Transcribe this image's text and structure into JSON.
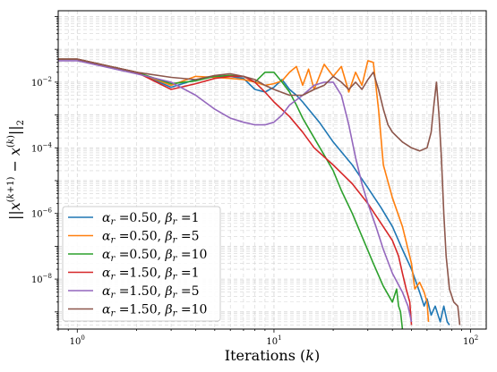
{
  "chart_data": {
    "type": "line",
    "title": "",
    "xlabel": "Iterations (k)",
    "ylabel": "||x^(k+1) − x^(k)||_2",
    "xscale": "log",
    "yscale": "log",
    "xlim": [
      0.8,
      120
    ],
    "ylim": [
      3e-10,
      1.5
    ],
    "grid": true,
    "legend_position": "lower-left",
    "x_ticks": [
      {
        "value": 1,
        "mant": "10",
        "exp": "0"
      },
      {
        "value": 10,
        "mant": "10",
        "exp": "1"
      },
      {
        "value": 100,
        "mant": "10",
        "exp": "2"
      }
    ],
    "y_ticks": [
      {
        "value": 1e-08,
        "mant": "10",
        "exp": "−8"
      },
      {
        "value": 1e-06,
        "mant": "10",
        "exp": "−6"
      },
      {
        "value": 0.0001,
        "mant": "10",
        "exp": "−4"
      },
      {
        "value": 0.01,
        "mant": "10",
        "exp": "−2"
      }
    ],
    "series": [
      {
        "alpha": "0.50",
        "beta": "1",
        "color": "#1f77b4",
        "points": [
          [
            0.8,
            0.05
          ],
          [
            1,
            0.05
          ],
          [
            2,
            0.02
          ],
          [
            3,
            0.007
          ],
          [
            4,
            0.012
          ],
          [
            5,
            0.015
          ],
          [
            6,
            0.015
          ],
          [
            7,
            0.013
          ],
          [
            8,
            0.006
          ],
          [
            9,
            0.005
          ],
          [
            10,
            0.007
          ],
          [
            11,
            0.012
          ],
          [
            12,
            0.006
          ],
          [
            13,
            0.004
          ],
          [
            14,
            0.0025
          ],
          [
            15,
            0.0015
          ],
          [
            17,
            0.0006
          ],
          [
            20,
            0.00015
          ],
          [
            25,
            3e-05
          ],
          [
            30,
            6e-06
          ],
          [
            35,
            1.5e-06
          ],
          [
            40,
            4e-07
          ],
          [
            45,
            8e-08
          ],
          [
            50,
            2e-08
          ],
          [
            55,
            4e-09
          ],
          [
            58,
            1.5e-09
          ],
          [
            60,
            2.5e-09
          ],
          [
            63,
            8e-10
          ],
          [
            66,
            1.5e-09
          ],
          [
            70,
            5e-10
          ],
          [
            73,
            1.5e-09
          ],
          [
            76,
            5e-10
          ],
          [
            78,
            4e-10
          ]
        ]
      },
      {
        "alpha": "0.50",
        "beta": "5",
        "color": "#ff7f0e",
        "points": [
          [
            0.8,
            0.05
          ],
          [
            1,
            0.05
          ],
          [
            2,
            0.02
          ],
          [
            3,
            0.008
          ],
          [
            4,
            0.015
          ],
          [
            5,
            0.014
          ],
          [
            6,
            0.013
          ],
          [
            7,
            0.012
          ],
          [
            8,
            0.01
          ],
          [
            9,
            0.008
          ],
          [
            10,
            0.009
          ],
          [
            11,
            0.011
          ],
          [
            12,
            0.02
          ],
          [
            13,
            0.03
          ],
          [
            14,
            0.008
          ],
          [
            15,
            0.025
          ],
          [
            16,
            0.006
          ],
          [
            18,
            0.035
          ],
          [
            20,
            0.015
          ],
          [
            22,
            0.03
          ],
          [
            24,
            0.005
          ],
          [
            26,
            0.02
          ],
          [
            28,
            0.008
          ],
          [
            30,
            0.045
          ],
          [
            32,
            0.04
          ],
          [
            34,
            0.0015
          ],
          [
            36,
            3e-05
          ],
          [
            40,
            3e-06
          ],
          [
            45,
            4e-07
          ],
          [
            50,
            3e-08
          ],
          [
            52,
            5e-09
          ],
          [
            55,
            8e-09
          ],
          [
            58,
            4e-09
          ],
          [
            60,
            2e-09
          ],
          [
            61,
            5e-10
          ]
        ]
      },
      {
        "alpha": "0.50",
        "beta": "10",
        "color": "#2ca02c",
        "points": [
          [
            0.8,
            0.05
          ],
          [
            1,
            0.05
          ],
          [
            2,
            0.02
          ],
          [
            3,
            0.009
          ],
          [
            4,
            0.011
          ],
          [
            5,
            0.015
          ],
          [
            6,
            0.016
          ],
          [
            7,
            0.015
          ],
          [
            8,
            0.01
          ],
          [
            9,
            0.02
          ],
          [
            10,
            0.02
          ],
          [
            11,
            0.01
          ],
          [
            12,
            0.005
          ],
          [
            13,
            0.002
          ],
          [
            14,
            0.0008
          ],
          [
            16,
            0.0002
          ],
          [
            18,
            6e-05
          ],
          [
            20,
            2e-05
          ],
          [
            22,
            5e-06
          ],
          [
            25,
            1e-06
          ],
          [
            28,
            2e-07
          ],
          [
            32,
            3e-08
          ],
          [
            36,
            6e-09
          ],
          [
            40,
            2e-09
          ],
          [
            42,
            5e-09
          ],
          [
            43,
            1.5e-09
          ],
          [
            44,
            1e-09
          ],
          [
            45,
            3e-10
          ]
        ]
      },
      {
        "alpha": "1.50",
        "beta": "1",
        "color": "#d62728",
        "points": [
          [
            0.8,
            0.05
          ],
          [
            1,
            0.05
          ],
          [
            2,
            0.02
          ],
          [
            3,
            0.006
          ],
          [
            4,
            0.009
          ],
          [
            5,
            0.013
          ],
          [
            6,
            0.015
          ],
          [
            7,
            0.015
          ],
          [
            8,
            0.01
          ],
          [
            9,
            0.005
          ],
          [
            10,
            0.0025
          ],
          [
            12,
            0.0009
          ],
          [
            14,
            0.0003
          ],
          [
            16,
            0.0001
          ],
          [
            20,
            3e-05
          ],
          [
            25,
            8e-06
          ],
          [
            30,
            2e-06
          ],
          [
            35,
            5e-07
          ],
          [
            40,
            1.5e-07
          ],
          [
            43,
            5e-08
          ],
          [
            45,
            1.5e-08
          ],
          [
            47,
            5e-09
          ],
          [
            49,
            2e-09
          ],
          [
            50,
            4e-10
          ]
        ]
      },
      {
        "alpha": "1.50",
        "beta": "5",
        "color": "#9467bd",
        "points": [
          [
            0.8,
            0.045
          ],
          [
            1,
            0.045
          ],
          [
            2,
            0.018
          ],
          [
            3,
            0.01
          ],
          [
            4,
            0.004
          ],
          [
            5,
            0.0015
          ],
          [
            6,
            0.0008
          ],
          [
            7,
            0.0006
          ],
          [
            8,
            0.0005
          ],
          [
            9,
            0.0005
          ],
          [
            10,
            0.0006
          ],
          [
            11,
            0.001
          ],
          [
            12,
            0.002
          ],
          [
            14,
            0.004
          ],
          [
            16,
            0.008
          ],
          [
            18,
            0.01
          ],
          [
            20,
            0.01
          ],
          [
            22,
            0.004
          ],
          [
            24,
            0.0005
          ],
          [
            26,
            5e-05
          ],
          [
            28,
            8e-06
          ],
          [
            30,
            2e-06
          ],
          [
            33,
            4e-07
          ],
          [
            36,
            8e-08
          ],
          [
            40,
            1.5e-08
          ],
          [
            45,
            4e-09
          ],
          [
            48,
            1.5e-09
          ],
          [
            50,
            5e-10
          ]
        ]
      },
      {
        "alpha": "1.50",
        "beta": "10",
        "color": "#8c564b",
        "points": [
          [
            0.8,
            0.05
          ],
          [
            1,
            0.05
          ],
          [
            2,
            0.02
          ],
          [
            3,
            0.014
          ],
          [
            4,
            0.012
          ],
          [
            5,
            0.016
          ],
          [
            6,
            0.018
          ],
          [
            7,
            0.015
          ],
          [
            8,
            0.012
          ],
          [
            9,
            0.008
          ],
          [
            10,
            0.006
          ],
          [
            12,
            0.004
          ],
          [
            14,
            0.004
          ],
          [
            16,
            0.006
          ],
          [
            18,
            0.008
          ],
          [
            20,
            0.015
          ],
          [
            22,
            0.01
          ],
          [
            24,
            0.006
          ],
          [
            26,
            0.01
          ],
          [
            28,
            0.006
          ],
          [
            30,
            0.012
          ],
          [
            32,
            0.02
          ],
          [
            34,
            0.006
          ],
          [
            36,
            0.0015
          ],
          [
            38,
            0.0005
          ],
          [
            40,
            0.0003
          ],
          [
            45,
            0.00015
          ],
          [
            50,
            0.0001
          ],
          [
            55,
            8e-05
          ],
          [
            60,
            0.0001
          ],
          [
            63,
            0.0003
          ],
          [
            65,
            0.002
          ],
          [
            67,
            0.01
          ],
          [
            69,
            0.001
          ],
          [
            71,
            5e-05
          ],
          [
            73,
            1e-06
          ],
          [
            75,
            5e-08
          ],
          [
            78,
            5e-09
          ],
          [
            82,
            2e-09
          ],
          [
            86,
            1.5e-09
          ],
          [
            88,
            4e-10
          ]
        ]
      }
    ]
  }
}
